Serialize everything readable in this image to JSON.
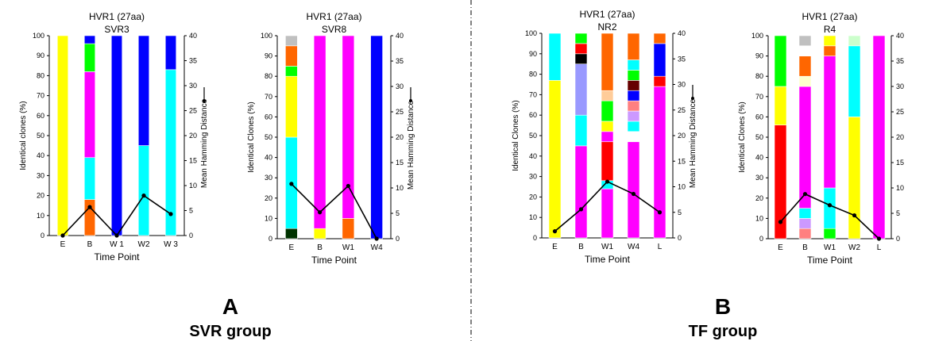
{
  "figure": {
    "panel_a": {
      "letter": "A",
      "group": "SVR group"
    },
    "panel_b": {
      "letter": "B",
      "group": "TF group"
    },
    "colors": {
      "yellow": "#ffff00",
      "orange": "#ff6600",
      "cyan": "#00ffff",
      "magenta": "#ff00ff",
      "green": "#00ff00",
      "blue": "#0000ff",
      "red": "#ff0000",
      "darkgreen": "#003300",
      "gray": "#c0c0c0",
      "black": "#000000",
      "lavender": "#9999ff",
      "peach": "#ffcc99",
      "cream": "#ffffcc",
      "salmon": "#ff8080",
      "lilac": "#cc99ff",
      "darkred": "#660000",
      "lightgreen": "#ccffcc",
      "white": "#ffffff"
    }
  },
  "chart_data": [
    {
      "type": "bar",
      "stacked": true,
      "title": "HVR1 (27aa)",
      "subtitle": "SVR3",
      "xlabel": "Time Point",
      "ylabel": "Identical clones (%)",
      "y2label": "Mean Hamming Distance",
      "ylim": [
        0,
        100
      ],
      "y2lim": [
        0,
        40
      ],
      "yticks": [
        0,
        10,
        20,
        30,
        40,
        50,
        60,
        70,
        80,
        90,
        100
      ],
      "y2ticks": [
        0,
        5,
        10,
        15,
        20,
        25,
        30,
        35,
        40
      ],
      "categories": [
        "E",
        "B",
        "W 1",
        "W2",
        "W 3"
      ],
      "stacks": [
        [
          [
            "yellow",
            100
          ]
        ],
        [
          [
            "orange",
            18
          ],
          [
            "cyan",
            21
          ],
          [
            "magenta",
            43
          ],
          [
            "green",
            14
          ],
          [
            "blue",
            4
          ]
        ],
        [
          [
            "blue",
            100
          ]
        ],
        [
          [
            "cyan",
            45
          ],
          [
            "blue",
            55
          ]
        ],
        [
          [
            "cyan",
            83
          ],
          [
            "blue",
            17
          ]
        ]
      ],
      "line": [
        0,
        5.7,
        0,
        8,
        4.3
      ]
    },
    {
      "type": "bar",
      "stacked": true,
      "title": "HVR1 (27aa)",
      "subtitle": "SVR8",
      "xlabel": "Time Point",
      "ylabel": "Identical Clones (%)",
      "y2label": "Mean Hamming Distance",
      "ylim": [
        0,
        100
      ],
      "y2lim": [
        0,
        40
      ],
      "yticks": [
        0,
        10,
        20,
        30,
        40,
        50,
        60,
        70,
        80,
        90,
        100
      ],
      "y2ticks": [
        0,
        5,
        10,
        15,
        20,
        25,
        30,
        35,
        40
      ],
      "categories": [
        "E",
        "B",
        "W1",
        "W4"
      ],
      "stacks": [
        [
          [
            "darkgreen",
            5
          ],
          [
            "cyan",
            45
          ],
          [
            "yellow",
            30
          ],
          [
            "green",
            5
          ],
          [
            "orange",
            10
          ],
          [
            "gray",
            5
          ]
        ],
        [
          [
            "yellow",
            5
          ],
          [
            "magenta",
            95
          ]
        ],
        [
          [
            "orange",
            10
          ],
          [
            "magenta",
            90
          ]
        ],
        [
          [
            "blue",
            100
          ]
        ]
      ],
      "line": [
        10.8,
        5.2,
        10.4,
        0
      ]
    },
    {
      "type": "bar",
      "stacked": true,
      "title": "HVR1 (27aa)",
      "subtitle": "NR2",
      "xlabel": "Time Point",
      "ylabel": "Identical Clones (%)",
      "y2label": "Mean Hamming Distance",
      "ylim": [
        0,
        100
      ],
      "y2lim": [
        0,
        40
      ],
      "yticks": [
        0,
        10,
        20,
        30,
        40,
        50,
        60,
        70,
        80,
        90,
        100
      ],
      "y2ticks": [
        0,
        5,
        10,
        15,
        20,
        25,
        30,
        35,
        40
      ],
      "categories": [
        "E",
        "B",
        "W1",
        "W4",
        "L"
      ],
      "stacks": [
        [
          [
            "yellow",
            77
          ],
          [
            "cyan",
            23
          ]
        ],
        [
          [
            "magenta",
            45
          ],
          [
            "cyan",
            15
          ],
          [
            "lavender",
            25
          ],
          [
            "black",
            5
          ],
          [
            "red",
            5
          ],
          [
            "green",
            5
          ]
        ],
        [
          [
            "magenta",
            24
          ],
          [
            "cyan",
            4
          ],
          [
            "red",
            19
          ],
          [
            "magenta",
            5
          ],
          [
            "yellow",
            5
          ],
          [
            "green",
            10
          ],
          [
            "peach",
            5
          ],
          [
            "orange",
            28
          ]
        ],
        [
          [
            "magenta",
            47
          ],
          [
            "white",
            5
          ],
          [
            "cyan",
            5
          ],
          [
            "lilac",
            5
          ],
          [
            "salmon",
            5
          ],
          [
            "blue",
            5
          ],
          [
            "darkred",
            5
          ],
          [
            "green",
            5
          ],
          [
            "cyan",
            5
          ],
          [
            "orange",
            13
          ]
        ],
        [
          [
            "magenta",
            74
          ],
          [
            "red",
            5
          ],
          [
            "blue",
            16
          ],
          [
            "orange",
            5
          ]
        ]
      ],
      "line": [
        1.3,
        5.6,
        11,
        8.6,
        5
      ]
    },
    {
      "type": "bar",
      "stacked": true,
      "title": "HVR1 (27aa)",
      "subtitle": "R4",
      "xlabel": "Time Point",
      "ylabel": "Identical Clones (%)",
      "y2label": "",
      "ylim": [
        0,
        100
      ],
      "y2lim": [
        0,
        40
      ],
      "yticks": [
        0,
        10,
        20,
        30,
        40,
        50,
        60,
        70,
        80,
        90,
        100
      ],
      "y2ticks": [
        0,
        5,
        10,
        15,
        20,
        25,
        30,
        35,
        40
      ],
      "categories": [
        "E",
        "B",
        "W1",
        "W2",
        "L"
      ],
      "stacks": [
        [
          [
            "red",
            56
          ],
          [
            "yellow",
            19
          ],
          [
            "green",
            25
          ]
        ],
        [
          [
            "salmon",
            5
          ],
          [
            "lilac",
            5
          ],
          [
            "cyan",
            5
          ],
          [
            "magenta",
            60
          ],
          [
            "cream",
            5
          ],
          [
            "orange",
            10
          ],
          [
            "white",
            5
          ],
          [
            "gray",
            5
          ]
        ],
        [
          [
            "green",
            5
          ],
          [
            "cyan",
            20
          ],
          [
            "magenta",
            65
          ],
          [
            "orange",
            5
          ],
          [
            "yellow",
            5
          ]
        ],
        [
          [
            "yellow",
            60
          ],
          [
            "cyan",
            35
          ],
          [
            "blue",
            0
          ],
          [
            "lightgreen",
            5
          ]
        ],
        [
          [
            "magenta",
            100
          ]
        ]
      ],
      "line": [
        3.3,
        8.8,
        6.6,
        4.6,
        0
      ]
    }
  ]
}
